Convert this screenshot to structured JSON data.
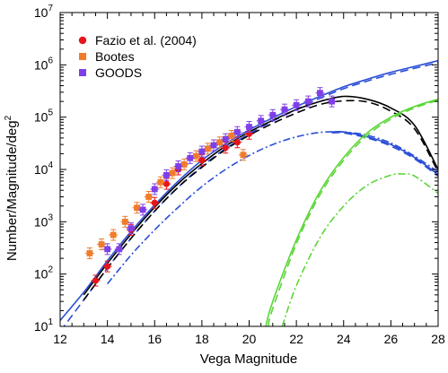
{
  "chart_data": {
    "type": "scatter",
    "xlabel": "Vega Magnitude",
    "ylabel": "Number/Magnitude/deg",
    "ylabel_sup": "2",
    "xlim": [
      12,
      28
    ],
    "ylim_log10": [
      1,
      7
    ],
    "yscale": "log",
    "xticks": [
      12,
      14,
      16,
      18,
      20,
      22,
      24,
      26,
      28
    ],
    "yticks": [
      {
        "exp": 1,
        "base": "10",
        "power": "1"
      },
      {
        "exp": 2,
        "base": "10",
        "power": "2"
      },
      {
        "exp": 3,
        "base": "10",
        "power": "3"
      },
      {
        "exp": 4,
        "base": "10",
        "power": "4"
      },
      {
        "exp": 5,
        "base": "10",
        "power": "5"
      },
      {
        "exp": 6,
        "base": "10",
        "power": "6"
      },
      {
        "exp": 7,
        "base": "10",
        "power": "7"
      }
    ],
    "legend": {
      "position": "top-left",
      "entries": [
        {
          "label": "Fazio et al. (2004)",
          "color": "#e8141b",
          "marker": "circle"
        },
        {
          "label": "Bootes",
          "color": "#f07c2a",
          "marker": "square"
        },
        {
          "label": "GOODS",
          "color": "#7f3fe8",
          "marker": "square"
        }
      ]
    },
    "series": [
      {
        "name": "Fazio et al. (2004)",
        "color": "#e8141b",
        "marker": "circle",
        "x": [
          13.5,
          14.0,
          15.0,
          16.0,
          16.5,
          17.0,
          18.0,
          19.0,
          19.5,
          20.0
        ],
        "y": [
          75,
          140,
          700,
          2300,
          5300,
          10000,
          15000,
          26000,
          33000,
          48000
        ]
      },
      {
        "name": "Bootes",
        "color": "#f07c2a",
        "marker": "square",
        "x": [
          13.25,
          13.75,
          14.25,
          14.75,
          15.25,
          15.75,
          16.25,
          16.75,
          17.25,
          17.75,
          18.25,
          18.75,
          19.25,
          19.75
        ],
        "y": [
          250,
          370,
          560,
          1000,
          1850,
          3000,
          5700,
          8500,
          12500,
          18000,
          25000,
          33000,
          44000,
          19000
        ]
      },
      {
        "name": "GOODS",
        "color": "#7f3fe8",
        "marker": "square",
        "x": [
          14.0,
          14.5,
          15.0,
          15.5,
          16.0,
          16.5,
          17.0,
          17.5,
          18.0,
          18.5,
          19.0,
          19.5,
          20.0,
          20.5,
          21.0,
          21.5,
          22.0,
          22.5,
          23.0,
          23.5
        ],
        "y": [
          300,
          300,
          750,
          1700,
          4200,
          7800,
          11500,
          16500,
          22000,
          29000,
          38000,
          52000,
          65000,
          85000,
          110000,
          140000,
          170000,
          200000,
          290000,
          200000
        ]
      }
    ],
    "model_lines": [
      {
        "color": "#2b4fd6",
        "style": "solid",
        "x": [
          12,
          13,
          14,
          15,
          16,
          17,
          18,
          19,
          20,
          21,
          22,
          23,
          24,
          25,
          26,
          27,
          28
        ],
        "y": [
          13,
          45,
          180,
          650,
          2100,
          6000,
          15000,
          31000,
          57000,
          97000,
          160000,
          250000,
          380000,
          530000,
          720000,
          930000,
          1200000
        ]
      },
      {
        "color": "#2b4fd6",
        "style": "dashed",
        "x": [
          12,
          13,
          14,
          15,
          16,
          17,
          18,
          19,
          20,
          21,
          22,
          23,
          24,
          25,
          26,
          27,
          28
        ],
        "y": [
          8,
          32,
          130,
          480,
          1600,
          4600,
          11500,
          25000,
          48000,
          84000,
          140000,
          230000,
          350000,
          490000,
          660000,
          860000,
          1100000
        ]
      },
      {
        "color": "#000000",
        "style": "solid",
        "x": [
          13,
          14,
          15,
          16,
          17,
          18,
          19,
          20,
          21,
          22,
          23,
          24,
          25,
          26,
          27,
          28
        ],
        "y": [
          40,
          160,
          580,
          1900,
          5400,
          13000,
          28000,
          52000,
          87000,
          140000,
          200000,
          250000,
          220000,
          150000,
          70000,
          10000
        ]
      },
      {
        "color": "#000000",
        "style": "dashed",
        "x": [
          13,
          14,
          15,
          16,
          17,
          18,
          19,
          20,
          21,
          22,
          23,
          24,
          25,
          26,
          27,
          28
        ],
        "y": [
          32,
          130,
          480,
          1600,
          4600,
          11000,
          24000,
          45000,
          76000,
          120000,
          175000,
          205000,
          195000,
          130000,
          60000,
          9000
        ]
      },
      {
        "color": "#2b4fd6",
        "style": "dashdot",
        "x": [
          14,
          15,
          16,
          17,
          18,
          19,
          20,
          21,
          22,
          23,
          24,
          25,
          26,
          27,
          28
        ],
        "y": [
          65,
          230,
          700,
          1900,
          4700,
          10000,
          18500,
          30000,
          42000,
          51000,
          52000,
          45000,
          32000,
          18000,
          9000
        ]
      },
      {
        "color": "#2b4fd6",
        "style": "solid",
        "x": [
          23.5,
          24,
          25,
          26,
          27,
          28
        ],
        "y": [
          52000,
          52000,
          42000,
          30000,
          17000,
          8000
        ]
      },
      {
        "color": "#2b4fd6",
        "style": "dashed",
        "x": [
          23.5,
          24,
          25,
          26,
          27,
          28
        ],
        "y": [
          50000,
          50000,
          40000,
          28000,
          16000,
          7500
        ]
      },
      {
        "color": "#5ad636",
        "style": "solid",
        "x": [
          20.7,
          21,
          22,
          23,
          24,
          25,
          26,
          27,
          28
        ],
        "y": [
          10,
          30,
          450,
          3800,
          17000,
          50000,
          100000,
          160000,
          220000
        ]
      },
      {
        "color": "#5ad636",
        "style": "dashed",
        "x": [
          20.8,
          21,
          22,
          23,
          24,
          25,
          26,
          27,
          28
        ],
        "y": [
          10,
          22,
          380,
          3300,
          15000,
          45000,
          92000,
          150000,
          210000
        ]
      },
      {
        "color": "#5ad636",
        "style": "dashdot",
        "x": [
          21.4,
          22,
          23,
          24,
          25,
          26,
          26.5,
          27,
          28
        ],
        "y": [
          10,
          60,
          500,
          2000,
          5000,
          7800,
          8200,
          7500,
          3500
        ]
      }
    ]
  }
}
